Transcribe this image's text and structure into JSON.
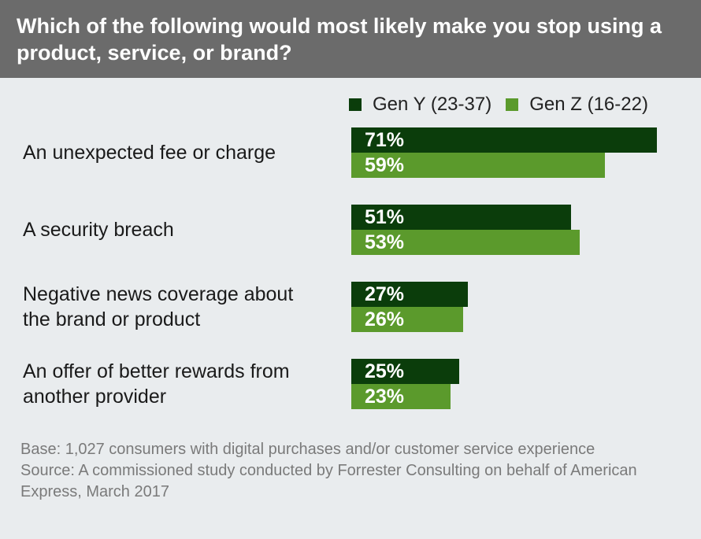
{
  "header": {
    "title": "Which of the following would most likely make you stop using a product, service, or brand?"
  },
  "colors": {
    "gen_y": "#0b3d0b",
    "gen_z": "#5b9a2c"
  },
  "chart_data": {
    "type": "bar",
    "orientation": "horizontal",
    "title": "Which of the following would most likely make you stop using a product, service, or brand?",
    "categories": [
      "An unexpected fee or charge",
      "A security breach",
      "Negative news coverage about the brand or product",
      "An offer of better rewards from another provider"
    ],
    "category_lines": [
      [
        "An unexpected fee or charge"
      ],
      [
        "A security breach"
      ],
      [
        "Negative news coverage about",
        "the brand or product"
      ],
      [
        "An offer of better rewards from",
        "another provider"
      ]
    ],
    "series": [
      {
        "name": "Gen Y (23-37)",
        "values": [
          71,
          51,
          27,
          25
        ],
        "labels": [
          "71%",
          "51%",
          "27%",
          "25%"
        ]
      },
      {
        "name": "Gen Z (16-22)",
        "values": [
          59,
          53,
          26,
          23
        ],
        "labels": [
          "59%",
          "53%",
          "26%",
          "23%"
        ]
      }
    ],
    "unit": "%",
    "xlim": [
      0,
      73
    ],
    "grid": false,
    "legend_position": "top-right"
  },
  "footnotes": {
    "base": "Base: 1,027 consumers with digital purchases and/or customer service experience",
    "source": "Source: A commissioned study conducted by Forrester Consulting on behalf of American Express, March 2017"
  }
}
